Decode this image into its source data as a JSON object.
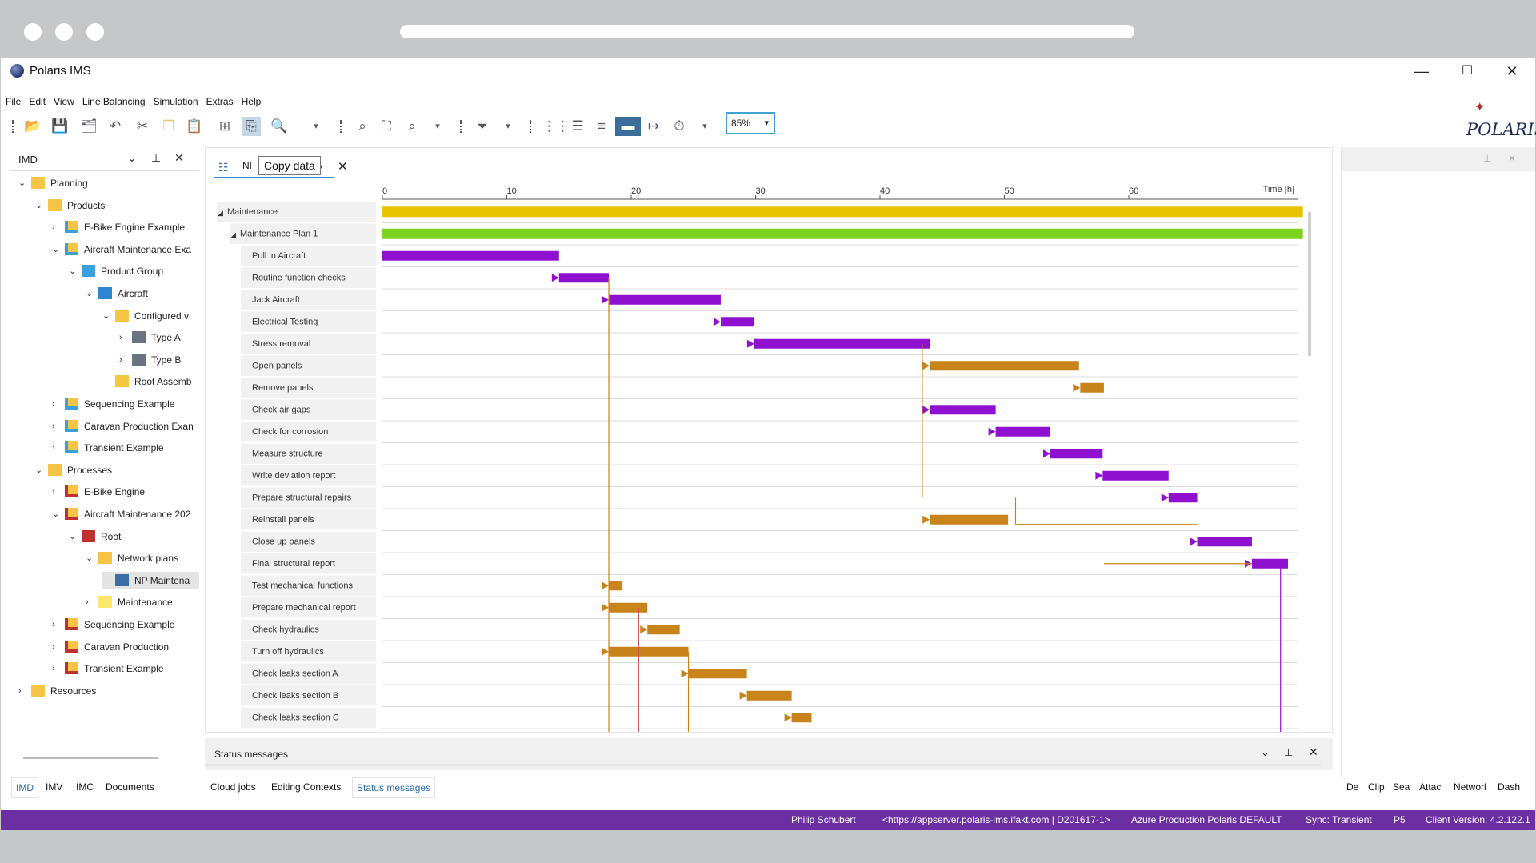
{
  "app": {
    "title": "Polaris IMS",
    "brand_logo": "POLARIS"
  },
  "window_controls": {
    "minimize": "—",
    "maximize": "☐",
    "close": "✕"
  },
  "menu": [
    "File",
    "Edit",
    "View",
    "Line Balancing",
    "Simulation",
    "Extras",
    "Help"
  ],
  "toolbar": {
    "zoom_value": "85%"
  },
  "left_panel": {
    "title": "IMD",
    "tree": [
      {
        "label": "Planning",
        "depth": 0,
        "expanded": true,
        "icon": "folder-icon"
      },
      {
        "label": "Products",
        "depth": 1,
        "expanded": true,
        "icon": "folder-icon"
      },
      {
        "label": "E-Bike Engine Example",
        "depth": 2,
        "expanded": false,
        "icon": "product-folder-icon"
      },
      {
        "label": "Aircraft Maintenance Exa",
        "depth": 2,
        "expanded": true,
        "icon": "product-folder-icon"
      },
      {
        "label": "Product Group",
        "depth": 3,
        "expanded": true,
        "icon": "cube-group-icon"
      },
      {
        "label": "Aircraft",
        "depth": 4,
        "expanded": true,
        "icon": "cube-icon"
      },
      {
        "label": "Configured v",
        "depth": 5,
        "expanded": true,
        "icon": "config-folder-icon"
      },
      {
        "label": "Type A",
        "depth": 6,
        "expanded": false,
        "icon": "variant-icon"
      },
      {
        "label": "Type B",
        "depth": 6,
        "expanded": false,
        "icon": "variant-icon"
      },
      {
        "label": "Root Assemb",
        "depth": 5,
        "leaf": true,
        "icon": "assembly-icon"
      },
      {
        "label": "Sequencing Example",
        "depth": 2,
        "expanded": false,
        "icon": "product-folder-icon"
      },
      {
        "label": "Caravan Production Exan",
        "depth": 2,
        "expanded": false,
        "icon": "product-folder-icon"
      },
      {
        "label": "Transient Example",
        "depth": 2,
        "expanded": false,
        "icon": "product-folder-icon"
      },
      {
        "label": "Processes",
        "depth": 1,
        "expanded": true,
        "icon": "folder-icon"
      },
      {
        "label": "E-Bike Engine",
        "depth": 2,
        "expanded": false,
        "icon": "process-folder-icon"
      },
      {
        "label": "Aircraft Maintenance 202",
        "depth": 2,
        "expanded": true,
        "icon": "process-folder-icon"
      },
      {
        "label": "Root",
        "depth": 3,
        "expanded": true,
        "icon": "root-process-icon"
      },
      {
        "label": "Network plans",
        "depth": 4,
        "expanded": true,
        "icon": "network-folder-icon"
      },
      {
        "label": "NP Maintena",
        "depth": 5,
        "leaf": true,
        "selected": true,
        "icon": "network-plan-icon"
      },
      {
        "label": "Maintenance",
        "depth": 4,
        "expanded": false,
        "icon": "note-icon"
      },
      {
        "label": "Sequencing Example",
        "depth": 2,
        "expanded": false,
        "icon": "process-folder-icon"
      },
      {
        "label": "Caravan Production",
        "depth": 2,
        "expanded": false,
        "icon": "process-folder-icon"
      },
      {
        "label": "Transient Example",
        "depth": 2,
        "expanded": false,
        "icon": "process-folder-icon"
      },
      {
        "label": "Resources",
        "depth": 0,
        "expanded": false,
        "icon": "folder-icon"
      }
    ],
    "tabs": [
      "IMD",
      "IMV",
      "IMC",
      "Documents"
    ]
  },
  "document_tab": {
    "label_left": "NI",
    "label_right": "A",
    "tooltip": "Copy data"
  },
  "chart_data": {
    "type": "gantt",
    "axis_label": "Time [h]",
    "ticks": [
      0,
      10,
      20,
      30,
      40,
      50,
      60
    ],
    "x_range": [
      0,
      74
    ],
    "rows": [
      {
        "name": "Maintenance",
        "level": 0,
        "start": 0,
        "end": 74,
        "color": "#e8c400"
      },
      {
        "name": "Maintenance Plan 1",
        "level": 1,
        "start": 0,
        "end": 74,
        "color": "#7ed321"
      },
      {
        "name": "Pull in Aircraft",
        "level": 2,
        "start": 0,
        "end": 14.2,
        "color": "#9010d0"
      },
      {
        "name": "Routine function checks",
        "level": 2,
        "start": 14.2,
        "end": 18.2,
        "color": "#9010d0"
      },
      {
        "name": "Jack Aircraft",
        "level": 2,
        "start": 18.2,
        "end": 27.2,
        "color": "#9010d0"
      },
      {
        "name": "Electrical Testing",
        "level": 2,
        "start": 27.2,
        "end": 29.9,
        "color": "#9010d0"
      },
      {
        "name": "Stress removal",
        "level": 2,
        "start": 29.9,
        "end": 44,
        "color": "#9010d0"
      },
      {
        "name": "Open panels",
        "level": 2,
        "start": 44,
        "end": 56,
        "color": "#c8831a"
      },
      {
        "name": "Remove panels",
        "level": 2,
        "start": 56.1,
        "end": 58,
        "color": "#c8831a"
      },
      {
        "name": "Check air gaps",
        "level": 2,
        "start": 44,
        "end": 49.3,
        "color": "#9010d0"
      },
      {
        "name": "Check for corrosion",
        "level": 2,
        "start": 49.3,
        "end": 53.7,
        "color": "#9010d0"
      },
      {
        "name": "Measure structure",
        "level": 2,
        "start": 53.7,
        "end": 57.9,
        "color": "#9010d0"
      },
      {
        "name": "Write deviation report",
        "level": 2,
        "start": 57.9,
        "end": 63.2,
        "color": "#9010d0"
      },
      {
        "name": "Prepare structural repairs",
        "level": 2,
        "start": 63.2,
        "end": 65.5,
        "color": "#9010d0"
      },
      {
        "name": "Reinstall panels",
        "level": 2,
        "start": 44,
        "end": 50.3,
        "color": "#c8831a"
      },
      {
        "name": "Close up panels",
        "level": 2,
        "start": 65.5,
        "end": 69.9,
        "color": "#9010d0"
      },
      {
        "name": "Final structural report",
        "level": 2,
        "start": 69.9,
        "end": 72.8,
        "color": "#9010d0"
      },
      {
        "name": "Test mechanical functions",
        "level": 2,
        "start": 18.2,
        "end": 19.3,
        "color": "#c8831a"
      },
      {
        "name": "Prepare mechanical report",
        "level": 2,
        "start": 18.2,
        "end": 21.3,
        "color": "#c8831a"
      },
      {
        "name": "Check hydraulics",
        "level": 2,
        "start": 21.3,
        "end": 23.9,
        "color": "#c8831a"
      },
      {
        "name": "Turn off hydraulics",
        "level": 2,
        "start": 18.2,
        "end": 24.6,
        "color": "#c8831a"
      },
      {
        "name": "Check leaks section A",
        "level": 2,
        "start": 24.6,
        "end": 29.3,
        "color": "#c8831a"
      },
      {
        "name": "Check leaks section B",
        "level": 2,
        "start": 29.3,
        "end": 32.9,
        "color": "#c8831a"
      },
      {
        "name": "Check leaks section C",
        "level": 2,
        "start": 32.9,
        "end": 34.5,
        "color": "#c8831a"
      }
    ]
  },
  "status_panel": {
    "title": "Status messages"
  },
  "bottom_tabs": [
    "Cloud jobs",
    "Editing Contexts",
    "Status messages"
  ],
  "right_tabs": [
    "De",
    "Clip",
    "Sea",
    "Attac",
    "Networl",
    "Dash"
  ],
  "statusbar": {
    "user": "Philip Schubert",
    "server": "<https://appserver.polaris-ims.ifakt.com | D201617-1>",
    "environment": "Azure Production Polaris DEFAULT",
    "sync": "Sync: Transient",
    "p": "P5",
    "version": "Client Version: 4.2.122.1"
  }
}
